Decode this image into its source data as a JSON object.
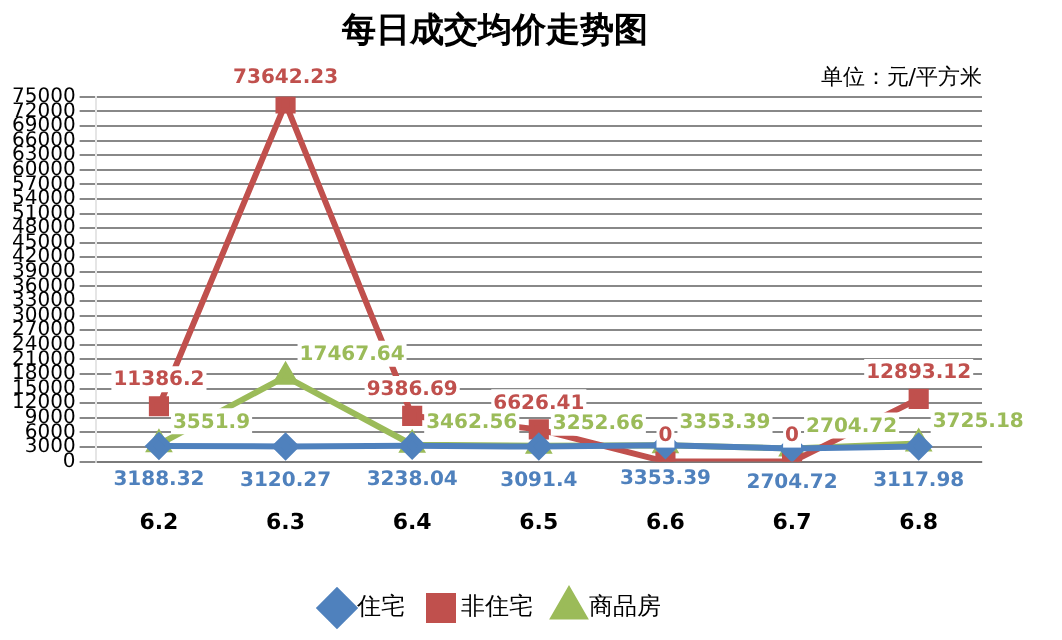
{
  "chart_data": {
    "type": "line",
    "title": "每日成交均价走势图",
    "annotations": [
      "单位：元/平方米"
    ],
    "categories": [
      "6.2",
      "6.3",
      "6.4",
      "6.5",
      "6.6",
      "6.7",
      "6.8"
    ],
    "series": [
      {
        "name": "住宅",
        "color": "#4f81bd",
        "marker": "diamond",
        "values": [
          3188.32,
          3120.27,
          3238.04,
          3091.4,
          3353.39,
          2704.72,
          3117.98
        ]
      },
      {
        "name": "非住宅",
        "color": "#c0504d",
        "marker": "square",
        "values": [
          11386.2,
          73642.23,
          9386.69,
          6626.41,
          0,
          0,
          12893.12
        ]
      },
      {
        "name": "商品房",
        "color": "#9bbb59",
        "marker": "triangle",
        "values": [
          3551.9,
          17467.64,
          3462.56,
          3252.66,
          3353.39,
          2704.72,
          3725.18
        ]
      }
    ],
    "ylim": [
      0,
      75000
    ],
    "yticks": [
      0,
      3000,
      6000,
      9000,
      12000,
      15000,
      18000,
      21000,
      24000,
      27000,
      30000,
      33000,
      36000,
      39000,
      42000,
      45000,
      48000,
      51000,
      54000,
      57000,
      60000,
      63000,
      66000,
      69000,
      72000,
      75000
    ],
    "grid": "y",
    "legend": "bottom",
    "data_labels": true,
    "line_style": "solid"
  }
}
